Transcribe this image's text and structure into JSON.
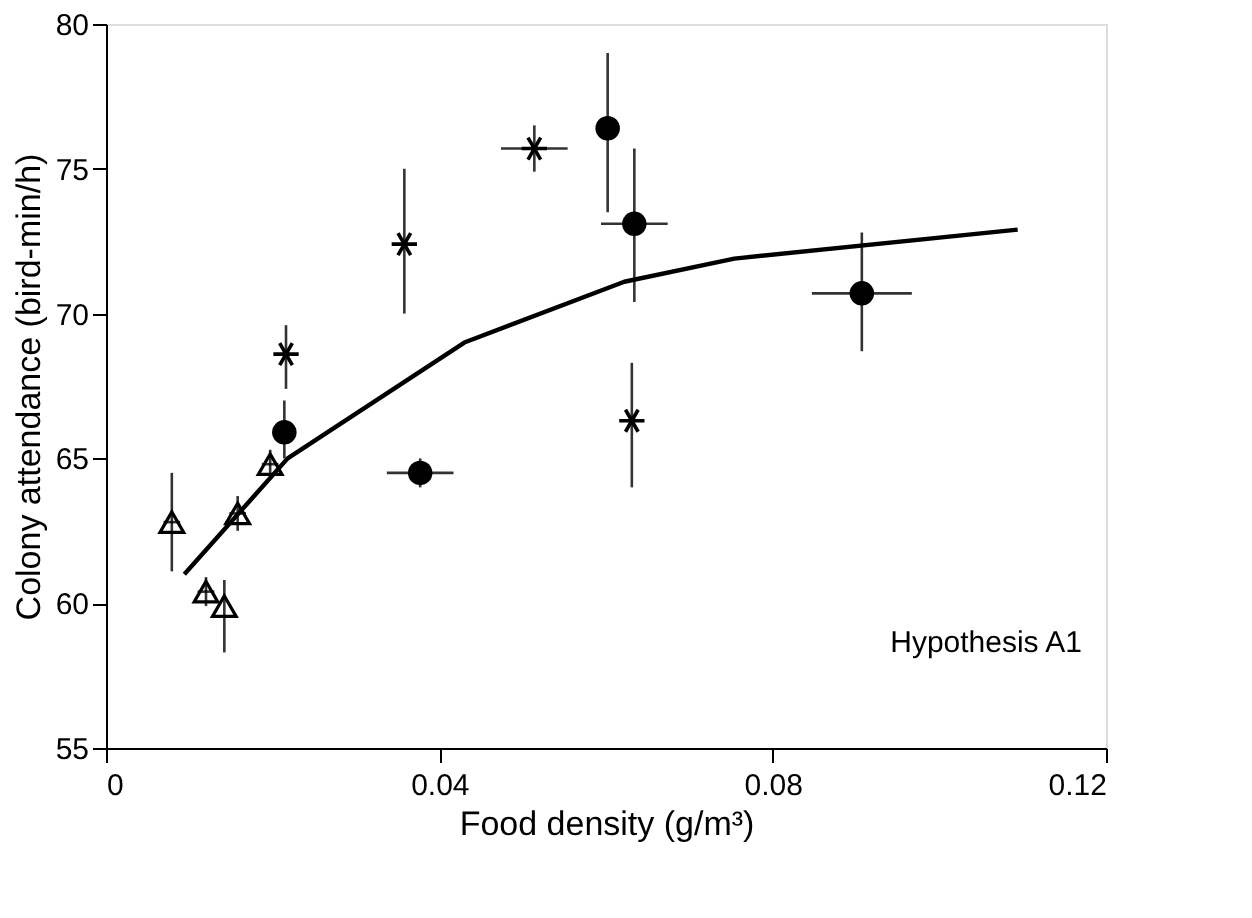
{
  "chart_data": {
    "type": "scatter",
    "xlabel": "Food density (g/m³)",
    "ylabel": "Colony attendance (bird-min/h)",
    "xlim": [
      0,
      0.12
    ],
    "xticks": [
      0,
      0.04,
      0.08,
      0.12
    ],
    "ylim": [
      55,
      80
    ],
    "yticks": [
      55,
      60,
      65,
      70,
      75,
      80
    ],
    "grid": false,
    "annotations": [
      "Hypothesis A1"
    ],
    "series": [
      {
        "marker": "triangle",
        "color": "#000000",
        "x": [
          0.0079,
          0.012,
          0.0142,
          0.0158,
          0.0197
        ],
        "values": [
          62.8,
          60.4,
          59.9,
          63.1,
          64.8
        ],
        "errors": [
          [
            61.1,
            64.5
          ],
          0.5,
          [
            58.3,
            60.8
          ],
          0.6,
          0.5
        ],
        "xerrors": [
          0.001,
          0.001,
          null,
          0.001,
          0.001
        ]
      },
      {
        "marker": "circle",
        "color": "#000000",
        "x": [
          0.0214,
          0.0377,
          0.0602,
          0.0634,
          0.0907
        ],
        "values": [
          65.9,
          64.5,
          76.4,
          73.1,
          70.7
        ],
        "errors": [
          [
            65.0,
            67.0
          ],
          0.5,
          [
            73.5,
            79.0
          ],
          [
            70.4,
            75.7
          ],
          [
            68.7,
            72.8
          ]
        ],
        "xerrors": [
          0.001,
          0.004,
          null,
          0.004,
          0.006
        ]
      },
      {
        "marker": "cross",
        "color": "#000000",
        "x": [
          0.0216,
          0.0358,
          0.0514,
          0.0631
        ],
        "values": [
          68.6,
          72.4,
          75.7,
          66.3
        ],
        "errors": [
          [
            67.4,
            69.6
          ],
          [
            70.0,
            75.0
          ],
          0.8,
          [
            64.0,
            68.3
          ]
        ],
        "xerrors": [
          null,
          null,
          0.004,
          null
        ]
      },
      {
        "type": "line",
        "marker": "none",
        "color": "#000000",
        "x": [
          0.0094,
          0.0218,
          0.043,
          0.0622,
          0.0754,
          0.1094
        ],
        "values": [
          61.0,
          65.0,
          69.0,
          71.1,
          71.9,
          72.9
        ]
      }
    ]
  }
}
